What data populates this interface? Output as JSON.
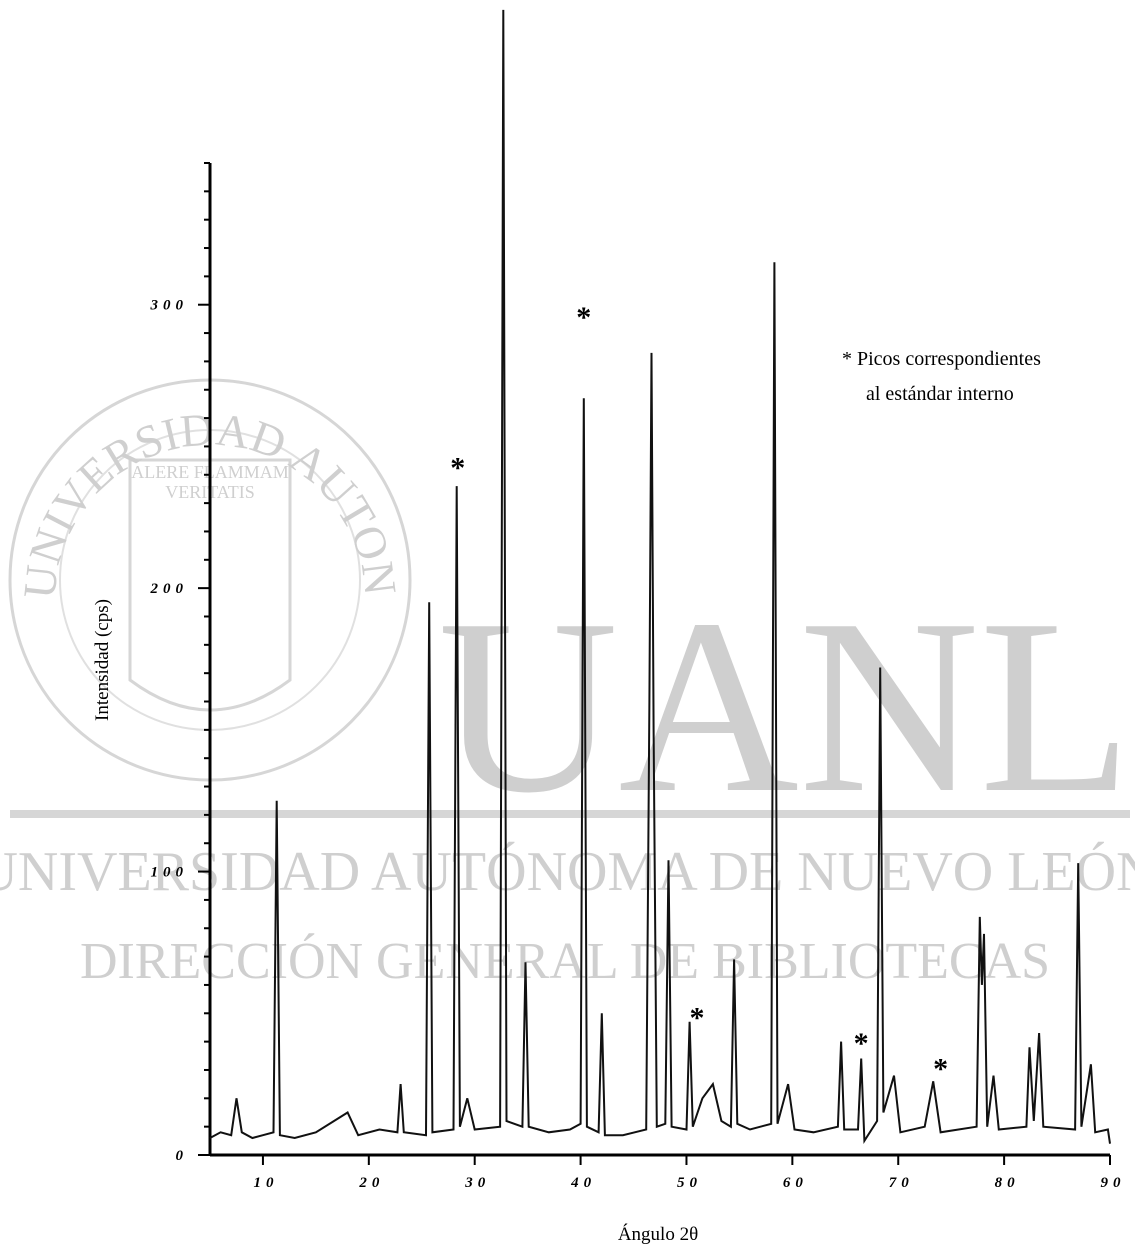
{
  "chart_data": {
    "type": "line",
    "x_label": "Ángulo 2θ",
    "y_label": "Intensidad (cps)",
    "note": [
      "* Picos correspondientes",
      "al estándar interno"
    ],
    "xlim": [
      5,
      90
    ],
    "ylim": [
      0,
      350
    ],
    "xticks": [
      10,
      20,
      30,
      40,
      50,
      60,
      70,
      80,
      90
    ],
    "yticks": [
      0,
      100,
      200,
      300
    ],
    "yminorticks": [
      10,
      20,
      30,
      40,
      50,
      60,
      70,
      80,
      90,
      110,
      120,
      130,
      140,
      150,
      160,
      170,
      180,
      190,
      210,
      220,
      230,
      240,
      250,
      260,
      270,
      280,
      290,
      310,
      320,
      330,
      340,
      350
    ],
    "color": "#111111",
    "x": [
      5,
      6,
      7,
      7.5,
      8,
      9,
      10,
      11,
      11.3,
      11.6,
      13,
      15,
      18,
      19,
      21,
      22.7,
      23,
      23.3,
      25.4,
      25.7,
      26,
      28,
      28.3,
      28.6,
      29.3,
      30,
      32.4,
      32.7,
      33,
      34.5,
      34.8,
      35.1,
      37,
      39,
      40.0,
      40.3,
      40.6,
      41.7,
      42,
      42.3,
      44,
      46.2,
      46.5,
      46.7,
      46.9,
      47.2,
      48,
      48.3,
      48.6,
      50,
      50.3,
      50.6,
      51.5,
      52.5,
      53.3,
      54.2,
      54.5,
      54.8,
      56,
      58,
      58.3,
      58.6,
      59.6,
      60.2,
      62,
      64.3,
      64.6,
      64.9,
      66.2,
      66.5,
      66.8,
      68,
      68.3,
      68.6,
      69.6,
      70.2,
      72.5,
      73.3,
      74,
      77.4,
      77.7,
      77.9,
      78.1,
      78.4,
      79,
      79.5,
      82.1,
      82.4,
      82.8,
      83.3,
      83.7,
      86.7,
      87,
      87.3,
      88.2,
      88.6,
      89.8,
      90
    ],
    "values": [
      6,
      8,
      7,
      20,
      8,
      6,
      7,
      8,
      125,
      7,
      6,
      8,
      15,
      7,
      9,
      8,
      25,
      8,
      7,
      195,
      8,
      9,
      236,
      10,
      20,
      9,
      10,
      404,
      12,
      10,
      68,
      10,
      8,
      9,
      11,
      267,
      10,
      8,
      50,
      7,
      7,
      9,
      160,
      283,
      150,
      10,
      11,
      104,
      10,
      9,
      47,
      10,
      20,
      25,
      12,
      10,
      69,
      11,
      9,
      11,
      315,
      11,
      25,
      9,
      8,
      10,
      40,
      9,
      9,
      34,
      5,
      12,
      172,
      15,
      28,
      8,
      10,
      26,
      8,
      10,
      84,
      60,
      78,
      10,
      28,
      9,
      10,
      38,
      12,
      43,
      10,
      9,
      103,
      10,
      32,
      8,
      9,
      4
    ],
    "annotations": [
      {
        "text": "*",
        "x": 28.4,
        "y": 244
      },
      {
        "text": "*",
        "x": 40.3,
        "y": 297
      },
      {
        "text": "*",
        "x": 51.0,
        "y": 50
      },
      {
        "text": "*",
        "x": 66.5,
        "y": 41
      },
      {
        "text": "*",
        "x": 74.0,
        "y": 32
      }
    ],
    "watermark": {
      "big": "UANL",
      "line1": "UNIVERSIDAD AUTÓNOMA DE NUEVO LEÓN",
      "line2": "DIRECCIÓN GENERAL DE BIBLIOTECAS",
      "seal": "UNIVERSIDAD AUTONOMA DE NUEVO LEON",
      "motto1": "ALERE FLAMMAM",
      "motto2": "VERITATIS"
    }
  }
}
